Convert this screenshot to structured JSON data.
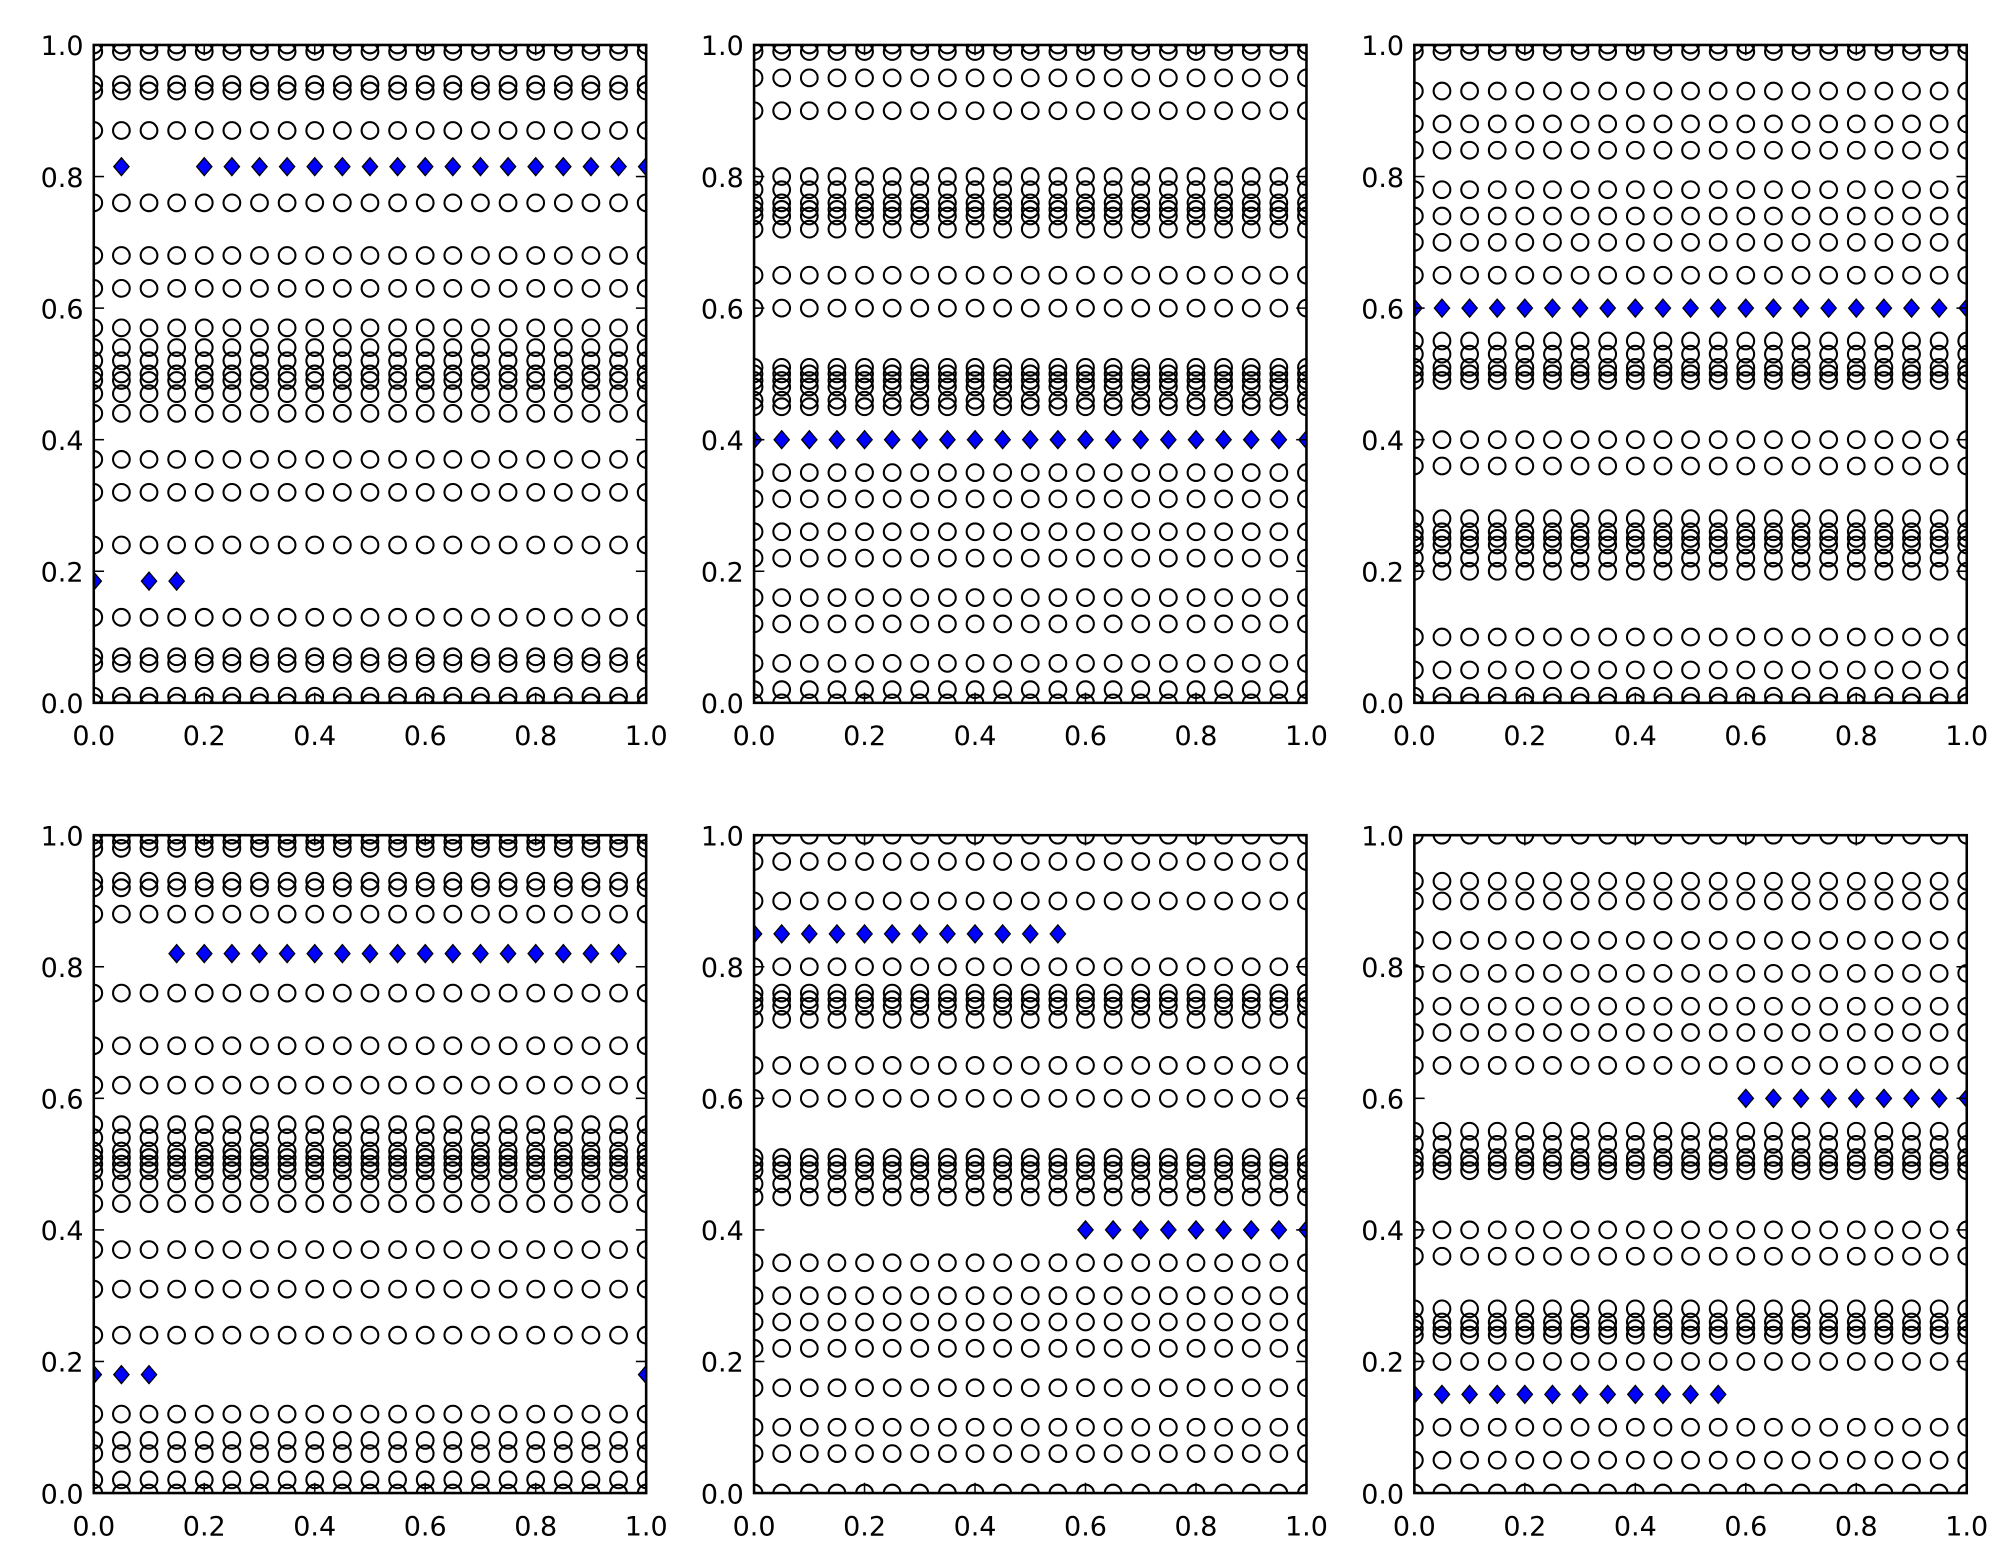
{
  "chart_data": [
    {
      "type": "scatter",
      "xlim": [
        0,
        1
      ],
      "ylim": [
        0,
        1
      ],
      "x_ticks": [
        "0.0",
        "0.2",
        "0.4",
        "0.6",
        "0.8",
        "1.0"
      ],
      "y_ticks": [
        "0.0",
        "0.2",
        "0.4",
        "0.6",
        "0.8",
        "1.0"
      ],
      "circle_x_step": 0.05,
      "circle_rows": [
        1.0,
        0.99,
        0.94,
        0.93,
        0.87,
        0.76,
        0.68,
        0.63,
        0.57,
        0.54,
        0.52,
        0.5,
        0.49,
        0.47,
        0.44,
        0.37,
        0.32,
        0.24,
        0.13,
        0.07,
        0.06,
        0.01,
        0.0
      ],
      "diamonds": [
        {
          "y": 0.815,
          "x": [
            0.05,
            0.2,
            0.25,
            0.3,
            0.35,
            0.4,
            0.45,
            0.5,
            0.55,
            0.6,
            0.65,
            0.7,
            0.75,
            0.8,
            0.85,
            0.9,
            0.95,
            1.0
          ]
        },
        {
          "y": 0.185,
          "x": [
            0.0,
            0.1,
            0.15
          ]
        }
      ]
    },
    {
      "type": "scatter",
      "xlim": [
        0,
        1
      ],
      "ylim": [
        0,
        1
      ],
      "x_ticks": [
        "0.0",
        "0.2",
        "0.4",
        "0.6",
        "0.8",
        "1.0"
      ],
      "y_ticks": [
        "0.0",
        "0.2",
        "0.4",
        "0.6",
        "0.8",
        "1.0"
      ],
      "circle_x_step": 0.05,
      "circle_rows": [
        1.0,
        0.99,
        0.95,
        0.9,
        0.8,
        0.78,
        0.76,
        0.75,
        0.74,
        0.72,
        0.65,
        0.6,
        0.51,
        0.5,
        0.49,
        0.48,
        0.46,
        0.45,
        0.35,
        0.31,
        0.26,
        0.22,
        0.16,
        0.12,
        0.06,
        0.02,
        0.0
      ],
      "diamonds": [
        {
          "y": 0.4,
          "x": [
            0.0,
            0.05,
            0.1,
            0.15,
            0.2,
            0.25,
            0.3,
            0.35,
            0.4,
            0.45,
            0.5,
            0.55,
            0.6,
            0.65,
            0.7,
            0.75,
            0.8,
            0.85,
            0.9,
            0.95,
            1.0
          ]
        }
      ]
    },
    {
      "type": "scatter",
      "xlim": [
        0,
        1
      ],
      "ylim": [
        0,
        1
      ],
      "x_ticks": [
        "0.0",
        "0.2",
        "0.4",
        "0.6",
        "0.8",
        "1.0"
      ],
      "y_ticks": [
        "0.0",
        "0.2",
        "0.4",
        "0.6",
        "0.8",
        "1.0"
      ],
      "circle_x_step": 0.05,
      "circle_rows": [
        1.0,
        0.99,
        0.93,
        0.88,
        0.84,
        0.78,
        0.74,
        0.7,
        0.65,
        0.55,
        0.53,
        0.51,
        0.5,
        0.49,
        0.4,
        0.36,
        0.28,
        0.26,
        0.25,
        0.24,
        0.22,
        0.2,
        0.1,
        0.05,
        0.01,
        0.0
      ],
      "diamonds": [
        {
          "y": 0.6,
          "x": [
            0.0,
            0.05,
            0.1,
            0.15,
            0.2,
            0.25,
            0.3,
            0.35,
            0.4,
            0.45,
            0.5,
            0.55,
            0.6,
            0.65,
            0.7,
            0.75,
            0.8,
            0.85,
            0.9,
            0.95,
            1.0
          ]
        }
      ]
    },
    {
      "type": "scatter",
      "xlim": [
        0,
        1
      ],
      "ylim": [
        0,
        1
      ],
      "x_ticks": [
        "0.0",
        "0.2",
        "0.4",
        "0.6",
        "0.8",
        "1.0"
      ],
      "y_ticks": [
        "0.0",
        "0.2",
        "0.4",
        "0.6",
        "0.8",
        "1.0"
      ],
      "circle_x_step": 0.05,
      "circle_rows": [
        1.0,
        0.99,
        0.98,
        0.93,
        0.92,
        0.88,
        0.76,
        0.68,
        0.62,
        0.56,
        0.54,
        0.52,
        0.51,
        0.5,
        0.49,
        0.47,
        0.44,
        0.37,
        0.31,
        0.24,
        0.12,
        0.08,
        0.06,
        0.02,
        0.0
      ],
      "diamonds": [
        {
          "y": 0.82,
          "x": [
            0.15,
            0.2,
            0.25,
            0.3,
            0.35,
            0.4,
            0.45,
            0.5,
            0.55,
            0.6,
            0.65,
            0.7,
            0.75,
            0.8,
            0.85,
            0.9,
            0.95
          ]
        },
        {
          "y": 0.18,
          "x": [
            0.0,
            0.05,
            0.1,
            1.0
          ]
        }
      ]
    },
    {
      "type": "scatter",
      "xlim": [
        0,
        1
      ],
      "ylim": [
        0,
        1
      ],
      "x_ticks": [
        "0.0",
        "0.2",
        "0.4",
        "0.6",
        "0.8",
        "1.0"
      ],
      "y_ticks": [
        "0.0",
        "0.2",
        "0.4",
        "0.6",
        "0.8",
        "1.0"
      ],
      "circle_x_step": 0.05,
      "circle_rows": [
        1.0,
        0.96,
        0.9,
        0.8,
        0.76,
        0.75,
        0.74,
        0.72,
        0.65,
        0.6,
        0.51,
        0.5,
        0.49,
        0.47,
        0.45,
        0.35,
        0.3,
        0.26,
        0.22,
        0.16,
        0.1,
        0.06,
        0.0
      ],
      "diamonds": [
        {
          "y": 0.85,
          "x": [
            0.0,
            0.05,
            0.1,
            0.15,
            0.2,
            0.25,
            0.3,
            0.35,
            0.4,
            0.45,
            0.5,
            0.55
          ]
        },
        {
          "y": 0.4,
          "x": [
            0.6,
            0.65,
            0.7,
            0.75,
            0.8,
            0.85,
            0.9,
            0.95,
            1.0
          ]
        }
      ]
    },
    {
      "type": "scatter",
      "xlim": [
        0,
        1
      ],
      "ylim": [
        0,
        1
      ],
      "x_ticks": [
        "0.0",
        "0.2",
        "0.4",
        "0.6",
        "0.8",
        "1.0"
      ],
      "y_ticks": [
        "0.0",
        "0.2",
        "0.4",
        "0.6",
        "0.8",
        "1.0"
      ],
      "circle_x_step": 0.05,
      "circle_rows": [
        1.0,
        0.93,
        0.9,
        0.84,
        0.79,
        0.74,
        0.7,
        0.65,
        0.55,
        0.53,
        0.51,
        0.5,
        0.49,
        0.4,
        0.36,
        0.28,
        0.26,
        0.25,
        0.24,
        0.2,
        0.1,
        0.05,
        0.0
      ],
      "diamonds": [
        {
          "y": 0.6,
          "x": [
            0.6,
            0.65,
            0.7,
            0.75,
            0.8,
            0.85,
            0.9,
            0.95,
            1.0
          ]
        },
        {
          "y": 0.15,
          "x": [
            0.0,
            0.05,
            0.1,
            0.15,
            0.2,
            0.25,
            0.3,
            0.35,
            0.4,
            0.45,
            0.5,
            0.55
          ]
        }
      ]
    }
  ],
  "colors": {
    "diamond": "#0000ff",
    "circle_edge": "#000000",
    "axes": "#000000"
  }
}
